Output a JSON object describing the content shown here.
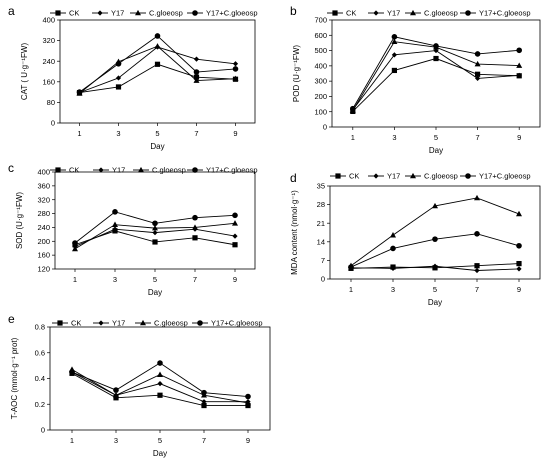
{
  "chart_data": [
    {
      "letter": "a",
      "type": "line",
      "x": [
        1,
        3,
        5,
        7,
        9
      ],
      "xlabel": "Day",
      "ylabel": "CAT ( U·g⁻¹FW)",
      "yticks": [
        "0",
        "80",
        "160",
        "240",
        "320",
        "400"
      ],
      "ylim": [
        0,
        400
      ],
      "series": [
        {
          "name": "CK",
          "marker": "square",
          "values": [
            118,
            140,
            228,
            178,
            170
          ]
        },
        {
          "name": "Y17",
          "marker": "diamond",
          "values": [
            118,
            175,
            295,
            248,
            230
          ]
        },
        {
          "name": "C.gloeosp",
          "marker": "triangle",
          "values": [
            115,
            238,
            298,
            165,
            172
          ]
        },
        {
          "name": "Y17+C.gloeosp",
          "marker": "circle",
          "values": [
            120,
            230,
            338,
            198,
            210
          ]
        }
      ]
    },
    {
      "letter": "b",
      "type": "line",
      "x": [
        1,
        3,
        5,
        7,
        9
      ],
      "xlabel": "Day",
      "ylabel": "POD (U·g⁻¹FW)",
      "yticks": [
        "0",
        "100",
        "200",
        "300",
        "400",
        "500",
        "600",
        "700"
      ],
      "ylim": [
        0,
        700
      ],
      "series": [
        {
          "name": "CK",
          "marker": "square",
          "values": [
            102,
            370,
            448,
            345,
            335
          ]
        },
        {
          "name": "Y17",
          "marker": "diamond",
          "values": [
            112,
            472,
            500,
            318,
            338
          ]
        },
        {
          "name": "C.gloeosp",
          "marker": "triangle",
          "values": [
            108,
            558,
            522,
            412,
            402
          ]
        },
        {
          "name": "Y17+C.gloeosp",
          "marker": "circle",
          "values": [
            120,
            590,
            530,
            478,
            502
          ]
        }
      ]
    },
    {
      "letter": "c",
      "type": "line",
      "x": [
        1,
        3,
        5,
        7,
        9
      ],
      "xlabel": "Day",
      "ylabel": "SOD (U·g⁻¹FW)",
      "yticks": [
        "120",
        "160",
        "200",
        "240",
        "280",
        "320",
        "360",
        "400"
      ],
      "ylim": [
        120,
        400
      ],
      "series": [
        {
          "name": "CK",
          "marker": "square",
          "values": [
            190,
            230,
            198,
            210,
            190
          ]
        },
        {
          "name": "Y17",
          "marker": "diamond",
          "values": [
            185,
            235,
            225,
            235,
            215
          ]
        },
        {
          "name": "C.gloeosp",
          "marker": "triangle",
          "values": [
            178,
            248,
            238,
            240,
            252
          ]
        },
        {
          "name": "Y17+C.gloeosp",
          "marker": "circle",
          "values": [
            195,
            285,
            252,
            268,
            275
          ]
        }
      ]
    },
    {
      "letter": "d",
      "type": "line",
      "x": [
        1,
        3,
        5,
        7,
        9
      ],
      "xlabel": "Day",
      "ylabel": "MDA content (nmol·g⁻¹)",
      "yticks": [
        "0",
        "7",
        "14",
        "21",
        "28",
        "35"
      ],
      "ylim": [
        0,
        35
      ],
      "series": [
        {
          "name": "CK",
          "marker": "square",
          "values": [
            4.0,
            4.5,
            4.2,
            5.0,
            5.8
          ]
        },
        {
          "name": "Y17",
          "marker": "diamond",
          "values": [
            4.2,
            4.0,
            4.8,
            3.2,
            3.8
          ]
        },
        {
          "name": "C.gloeosp",
          "marker": "triangle",
          "values": [
            5.0,
            16.5,
            27.5,
            30.5,
            24.5
          ]
        },
        {
          "name": "Y17+C.gloeosp",
          "marker": "circle",
          "values": [
            4.5,
            11.5,
            15.0,
            17.0,
            12.5
          ]
        }
      ]
    },
    {
      "letter": "e",
      "type": "line",
      "x": [
        1,
        3,
        5,
        7,
        9
      ],
      "xlabel": "Day",
      "ylabel": "T-AOC (mmol·g⁻¹ prot)",
      "yticks": [
        "0",
        "0.2",
        "0.4",
        "0.6",
        "0.8"
      ],
      "ylim": [
        0,
        0.8
      ],
      "series": [
        {
          "name": "CK",
          "marker": "square",
          "values": [
            0.44,
            0.25,
            0.27,
            0.19,
            0.19
          ]
        },
        {
          "name": "Y17",
          "marker": "diamond",
          "values": [
            0.45,
            0.27,
            0.36,
            0.22,
            0.22
          ]
        },
        {
          "name": "C.gloeosp",
          "marker": "triangle",
          "values": [
            0.47,
            0.27,
            0.43,
            0.27,
            0.21
          ]
        },
        {
          "name": "Y17+C.gloeosp",
          "marker": "circle",
          "values": [
            0.45,
            0.31,
            0.52,
            0.29,
            0.26
          ]
        }
      ]
    }
  ]
}
